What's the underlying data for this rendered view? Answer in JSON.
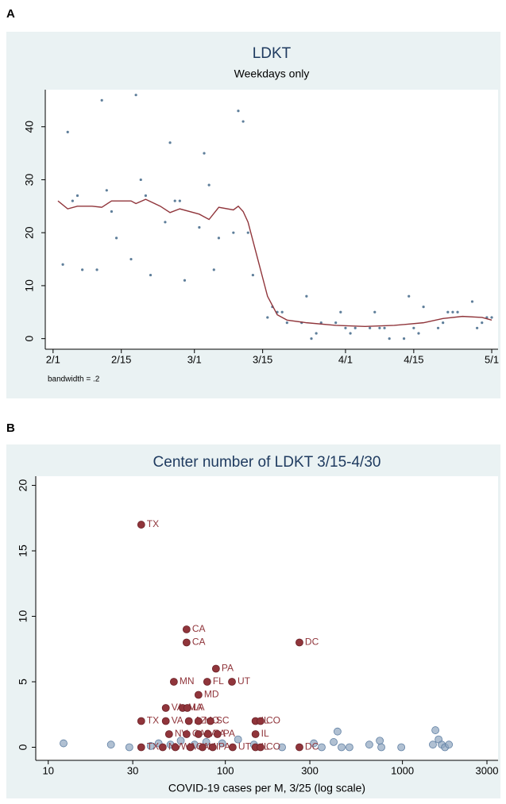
{
  "chart_data": [
    {
      "type": "scatter",
      "panel": "A",
      "title": "LDKT",
      "subtitle": "Weekdays only",
      "note": "bandwidth = .2",
      "xlim": [
        -1.6,
        91.3
      ],
      "ylim": [
        -2,
        47
      ],
      "xticks": [
        {
          "value": 0,
          "label": "2/1"
        },
        {
          "value": 14,
          "label": "2/15"
        },
        {
          "value": 29,
          "label": "3/1"
        },
        {
          "value": 43,
          "label": "3/15"
        },
        {
          "value": 60,
          "label": "4/1"
        },
        {
          "value": 74,
          "label": "4/15"
        },
        {
          "value": 90,
          "label": "5/1"
        }
      ],
      "yticks": [
        0,
        10,
        20,
        30,
        40
      ],
      "series": [
        {
          "type": "scatter",
          "color": "#1a476f",
          "x": [
            2,
            3,
            4,
            5,
            6,
            9,
            10,
            11,
            12,
            13,
            16,
            17,
            18,
            19,
            20,
            23,
            24,
            25,
            26,
            27,
            30,
            31,
            32,
            33,
            34,
            37,
            38,
            39,
            40,
            41,
            44,
            45,
            46,
            47,
            48,
            51,
            52,
            53,
            54,
            55,
            58,
            59,
            60,
            61,
            62,
            65,
            66,
            67,
            68,
            69,
            72,
            73,
            74,
            75,
            76,
            79,
            80,
            81,
            82,
            83,
            86,
            87,
            88,
            89,
            90
          ],
          "values": [
            14,
            39,
            26,
            27,
            13,
            13,
            45,
            28,
            24,
            19,
            15,
            46,
            30,
            27,
            12,
            22,
            37,
            26,
            26,
            11,
            21,
            35,
            29,
            13,
            19,
            20,
            43,
            41,
            20,
            12,
            4,
            6,
            5,
            5,
            3,
            3,
            8,
            0,
            1,
            3,
            3,
            5,
            2,
            1,
            2,
            2,
            5,
            2,
            2,
            0,
            0,
            8,
            2,
            1,
            6,
            2,
            3,
            5,
            5,
            5,
            7,
            2,
            3,
            4,
            4
          ]
        },
        {
          "type": "line",
          "color": "#90353b",
          "x": [
            1,
            3,
            5,
            8,
            10,
            12,
            16,
            17,
            19,
            22,
            24,
            26,
            30,
            32,
            34,
            37,
            38,
            39,
            40,
            42,
            44,
            46,
            48,
            52,
            58,
            64,
            70,
            76,
            80,
            84,
            88,
            90
          ],
          "values": [
            26,
            24.5,
            25,
            25,
            24.8,
            26,
            26,
            25.5,
            26.3,
            25,
            23.8,
            24.5,
            23.5,
            22.5,
            24.8,
            24.3,
            25,
            24,
            22,
            15,
            8,
            4.5,
            3.5,
            3,
            2.5,
            2.3,
            2.5,
            3,
            3.8,
            4.2,
            4,
            3.5
          ]
        }
      ]
    },
    {
      "type": "scatter",
      "panel": "B",
      "title": "Center number of LDKT 3/15-4/30",
      "xlabel": "COVID-19 cases per M, 3/25 (log scale)",
      "xlog": true,
      "xlim": [
        8.5,
        3467
      ],
      "ylim": [
        -1,
        20.7
      ],
      "xticks": [
        10,
        30,
        100,
        300,
        1000,
        3000
      ],
      "yticks": [
        0,
        5,
        10,
        15,
        20
      ],
      "series": [
        {
          "type": "scatter",
          "color": "#8fa5bf",
          "x": [
            12.2,
            22.6,
            28.7,
            37.9,
            42,
            49,
            56,
            67,
            78,
            96,
            118,
            145,
            209,
            316,
            350,
            409,
            430,
            453,
            502,
            650,
            745,
            760,
            985,
            1486,
            1535,
            1600,
            1667,
            1738,
            1830
          ],
          "values": [
            0.3,
            0.2,
            0,
            0.1,
            0.3,
            0.2,
            0.5,
            0.2,
            0.4,
            0.3,
            0.6,
            0.2,
            0,
            0.3,
            0,
            0.4,
            1.2,
            0,
            0,
            0.2,
            0.5,
            0,
            0,
            0.2,
            1.3,
            0.6,
            0.2,
            0,
            0.2
          ]
        },
        {
          "type": "scatter",
          "color": "#90353b",
          "x": [
            33.5,
            60.4,
            60.4,
            262,
            88.5,
            51.2,
            79,
            109,
            70.5,
            46.1,
            57.4,
            61,
            33.5,
            46.1,
            62.2,
            70.5,
            82.4,
            148,
            158,
            148,
            48.1,
            60.4,
            70.5,
            79.8,
            90.3,
            33.5,
            44.3,
            52.2,
            63.5,
            74.3,
            84.9,
            110,
            148,
            158,
            262
          ],
          "values": [
            17,
            9,
            8,
            8,
            6,
            5,
            5,
            5,
            4,
            3,
            3,
            3,
            2,
            2,
            2,
            2,
            2,
            2,
            2,
            1,
            1,
            1,
            1,
            1,
            1,
            0,
            0,
            0,
            0,
            0,
            0,
            0,
            0,
            0,
            0
          ],
          "labels": [
            "TX",
            "CA",
            "CA",
            "DC",
            "PA",
            "MN",
            "FL",
            "UT",
            "MD",
            "VA",
            "MA",
            "LA",
            "TX",
            "VA",
            "AZ",
            "MO",
            "SC",
            "IL",
            "CO",
            "IL",
            "NV",
            "CA",
            "CA",
            "PA",
            "PA",
            "TX",
            "NV",
            "WA",
            "CA",
            "MI",
            "PA",
            "UT",
            "IL",
            "CO",
            "DC"
          ]
        }
      ]
    }
  ]
}
